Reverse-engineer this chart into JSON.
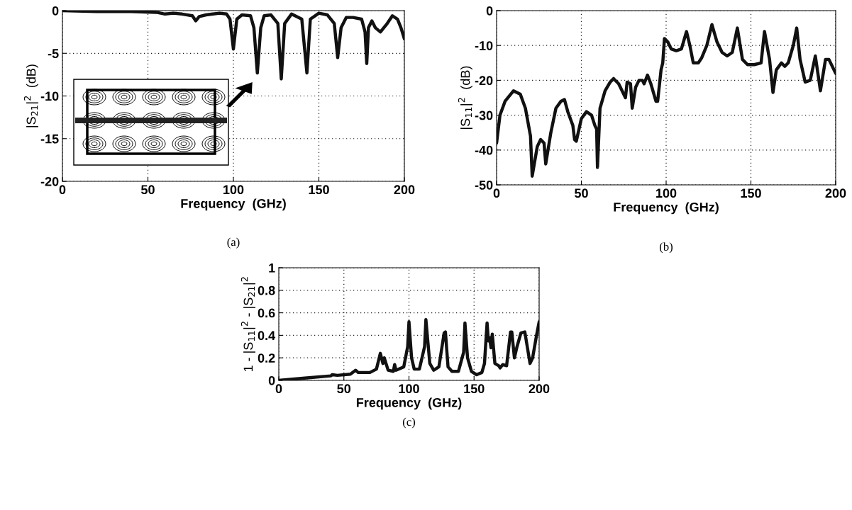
{
  "chart_data": [
    {
      "type": "line",
      "xlabel": "Frequency  (GHz)",
      "ylabel": "|S$_{21}$|$^{2}$  (dB)",
      "annotations": [
        "(a)"
      ],
      "xlim": [
        0,
        200
      ],
      "ylim": [
        -20,
        0
      ],
      "xticks": [
        0,
        50,
        100,
        150,
        200
      ],
      "yticks": [
        -20,
        -15,
        -10,
        -5,
        0
      ],
      "grid": true,
      "line_style": "solid",
      "marker": "none",
      "series": [
        {
          "color": "#111111",
          "x": [
            0,
            20,
            40,
            55,
            60,
            65,
            70,
            76,
            78,
            80,
            84,
            88,
            92,
            96,
            98,
            100,
            102,
            105,
            110,
            112,
            114,
            116,
            118,
            122,
            126,
            128,
            130,
            134,
            140,
            143,
            145,
            150,
            155,
            159,
            161,
            163,
            166,
            170,
            175,
            177,
            178,
            179,
            181,
            183,
            186,
            190,
            193,
            196,
            198,
            200
          ],
          "values": [
            0,
            -0.1,
            -0.1,
            -0.2,
            -0.4,
            -0.3,
            -0.4,
            -0.6,
            -1.2,
            -0.7,
            -0.5,
            -0.4,
            -0.3,
            -0.4,
            -1.0,
            -4.5,
            -1.0,
            -0.5,
            -0.6,
            -2.0,
            -7.3,
            -2.0,
            -0.6,
            -0.5,
            -1.5,
            -8.0,
            -1.5,
            -0.4,
            -1.0,
            -7.3,
            -1.0,
            -0.3,
            -0.5,
            -1.5,
            -5.5,
            -2.0,
            -0.8,
            -0.8,
            -1.0,
            -2.5,
            -6.2,
            -2.0,
            -1.2,
            -2.0,
            -2.5,
            -1.5,
            -0.6,
            -1.0,
            -2.0,
            -3.3
          ]
        }
      ]
    },
    {
      "type": "line",
      "xlabel": "Frequency  (GHz)",
      "ylabel": "|S$_{11}$|$^{2}$  (dB)",
      "annotations": [
        "(b)"
      ],
      "xlim": [
        0,
        200
      ],
      "ylim": [
        -50,
        0
      ],
      "xticks": [
        0,
        50,
        100,
        150,
        200
      ],
      "yticks": [
        -50,
        -40,
        -30,
        -20,
        -10,
        0
      ],
      "grid": true,
      "line_style": "solid",
      "marker": "none",
      "series": [
        {
          "color": "#111111",
          "x": [
            0,
            2,
            5,
            10,
            14,
            17,
            20,
            21,
            24,
            26,
            28,
            29,
            32,
            35,
            38,
            40,
            42,
            45,
            46,
            47,
            50,
            53,
            56,
            58,
            59,
            59.5,
            61,
            64,
            67,
            69,
            72,
            75,
            76,
            77,
            79,
            80,
            82,
            84,
            86,
            87,
            89,
            91,
            94,
            95,
            97,
            98,
            99,
            101,
            103,
            106,
            109,
            112,
            114,
            116,
            119,
            121,
            124,
            127,
            130,
            133,
            136,
            139,
            142,
            145,
            148,
            152,
            156,
            158,
            161,
            163,
            165,
            168,
            170,
            172,
            175,
            177,
            179,
            182,
            185,
            188,
            191,
            194,
            196,
            200
          ],
          "values": [
            -38,
            -30,
            -26,
            -23,
            -24,
            -28,
            -36,
            -47.5,
            -39,
            -37,
            -38,
            -44,
            -35,
            -28,
            -26,
            -25.5,
            -29,
            -33,
            -37,
            -37.5,
            -31,
            -29,
            -30,
            -33,
            -34,
            -45,
            -28,
            -23,
            -20.5,
            -19.5,
            -21,
            -24,
            -25,
            -20.5,
            -21,
            -28,
            -22,
            -20,
            -20,
            -21,
            -18.5,
            -21,
            -26,
            -26,
            -17,
            -15,
            -8,
            -9,
            -11,
            -11.5,
            -11,
            -6,
            -10,
            -15,
            -15,
            -13.5,
            -10,
            -4,
            -9,
            -12,
            -13,
            -12,
            -5,
            -14,
            -15.5,
            -15.5,
            -15,
            -6,
            -14,
            -23.5,
            -17,
            -15,
            -16,
            -15,
            -10,
            -5,
            -14,
            -20.5,
            -20,
            -13,
            -23,
            -14,
            -14,
            -18
          ]
        }
      ]
    },
    {
      "type": "line",
      "xlabel": "Frequency  (GHz)",
      "ylabel": "1 - |S$_{11}$|$^{2}$ - |S$_{21}$|$^{2}$",
      "annotations": [
        "(c)"
      ],
      "xlim": [
        0,
        200
      ],
      "ylim": [
        0,
        1
      ],
      "xticks": [
        0,
        50,
        100,
        150,
        200
      ],
      "yticks": [
        0,
        0.2,
        0.4,
        0.6,
        0.8,
        1
      ],
      "grid": true,
      "line_style": "solid",
      "marker": "none",
      "series": [
        {
          "color": "#111111",
          "x": [
            0,
            20,
            40,
            41,
            45,
            55,
            59,
            61,
            70,
            75,
            78,
            80,
            81,
            84,
            88,
            89,
            90,
            96,
            99,
            100,
            102,
            104,
            108,
            112,
            113,
            116,
            119,
            123,
            127,
            128,
            130,
            133,
            138,
            142,
            143,
            145,
            148,
            152,
            156,
            158,
            160,
            161,
            162,
            163,
            164,
            166,
            169,
            170,
            172,
            175,
            178,
            179,
            181,
            183,
            186,
            189,
            193,
            195,
            198,
            200
          ],
          "values": [
            0,
            0.02,
            0.04,
            0.05,
            0.045,
            0.055,
            0.09,
            0.07,
            0.07,
            0.1,
            0.24,
            0.15,
            0.2,
            0.09,
            0.08,
            0.14,
            0.09,
            0.12,
            0.3,
            0.52,
            0.2,
            0.1,
            0.1,
            0.3,
            0.54,
            0.15,
            0.09,
            0.12,
            0.42,
            0.43,
            0.12,
            0.08,
            0.08,
            0.25,
            0.51,
            0.2,
            0.08,
            0.05,
            0.07,
            0.15,
            0.51,
            0.35,
            0.38,
            0.29,
            0.41,
            0.15,
            0.13,
            0.11,
            0.14,
            0.13,
            0.43,
            0.43,
            0.2,
            0.3,
            0.42,
            0.43,
            0.15,
            0.2,
            0.4,
            0.52
          ]
        }
      ]
    }
  ]
}
